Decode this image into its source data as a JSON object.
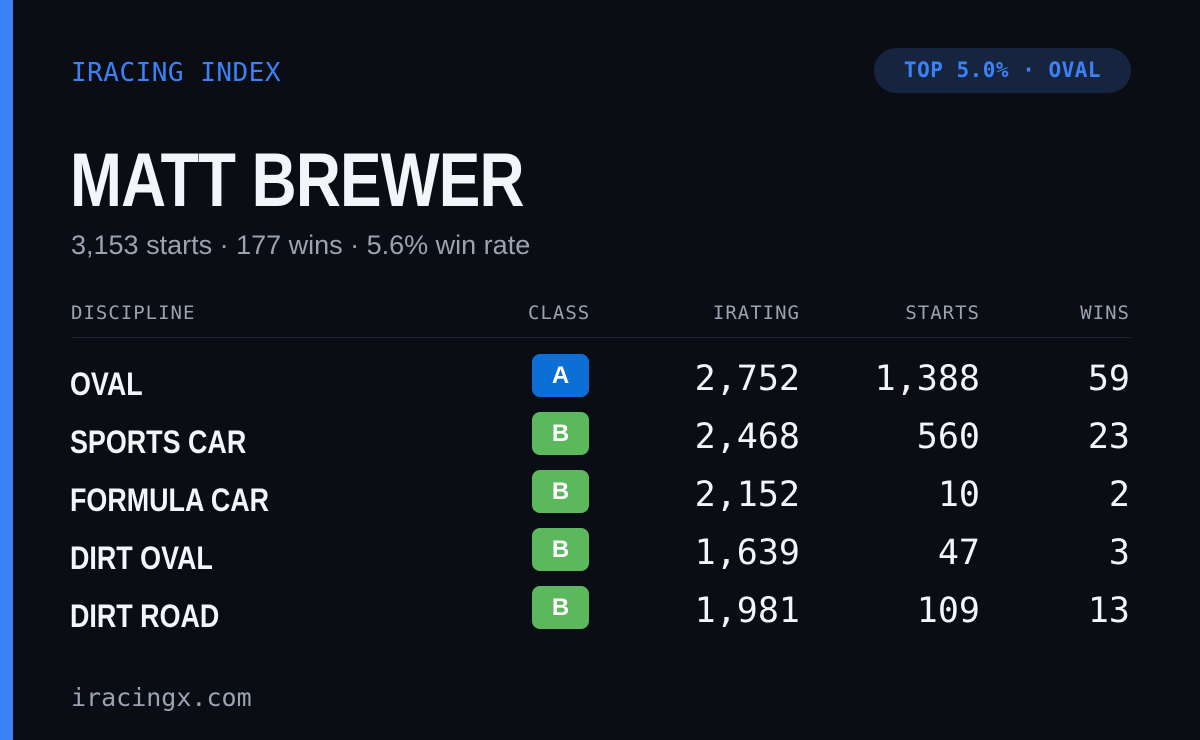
{
  "brand": "IRACING INDEX",
  "top_badge": "TOP 5.0% · OVAL",
  "driver": {
    "name": "MATT BREWER",
    "summary": "3,153 starts · 177 wins · 5.6% win rate"
  },
  "table": {
    "headers": {
      "discipline": "DISCIPLINE",
      "class": "CLASS",
      "irating": "IRATING",
      "starts": "STARTS",
      "wins": "WINS"
    },
    "rows": [
      {
        "discipline": "OVAL",
        "class": "A",
        "irating": "2,752",
        "starts": "1,388",
        "wins": "59"
      },
      {
        "discipline": "SPORTS CAR",
        "class": "B",
        "irating": "2,468",
        "starts": "560",
        "wins": "23"
      },
      {
        "discipline": "FORMULA CAR",
        "class": "B",
        "irating": "2,152",
        "starts": "10",
        "wins": "2"
      },
      {
        "discipline": "DIRT OVAL",
        "class": "B",
        "irating": "1,639",
        "starts": "47",
        "wins": "3"
      },
      {
        "discipline": "DIRT ROAD",
        "class": "B",
        "irating": "1,981",
        "starts": "109",
        "wins": "13"
      }
    ]
  },
  "footer": "iracingx.com",
  "colors": {
    "accent": "#3b82f6",
    "background": "#0a0d14",
    "class_a": "#0b6fd6",
    "class_b": "#5cb85c",
    "muted_text": "#9aa3b2"
  }
}
